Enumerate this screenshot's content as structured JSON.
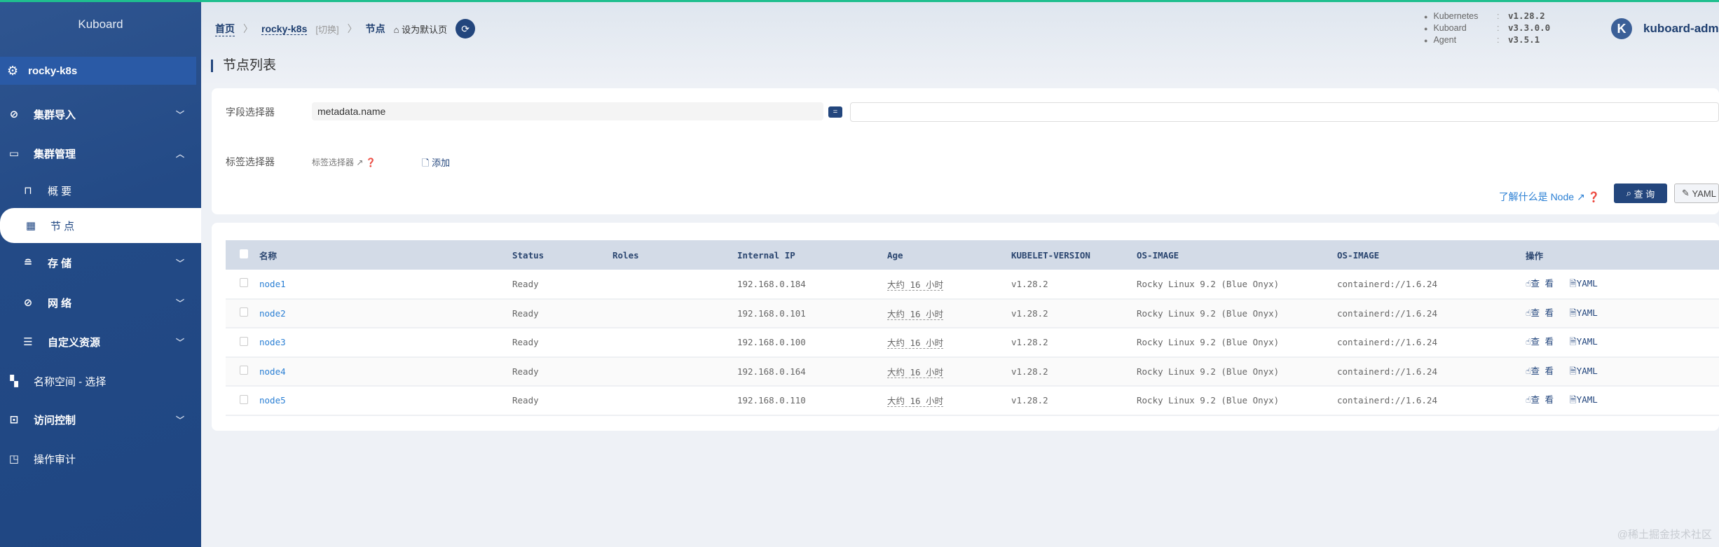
{
  "sidebar": {
    "logo": "Kuboard",
    "cluster": "rocky-k8s",
    "items": [
      {
        "label": "集群导入",
        "icon": "link-icon",
        "chevron": "﹀"
      },
      {
        "label": "集群管理",
        "icon": "folder-icon",
        "chevron": "︿"
      },
      {
        "label": "概 要",
        "icon": "monitor-icon"
      },
      {
        "label": "节 点",
        "icon": "grid-icon"
      },
      {
        "label": "存 储",
        "icon": "database-icon",
        "chevron": "﹀"
      },
      {
        "label": "网 络",
        "icon": "link-icon",
        "chevron": "﹀"
      },
      {
        "label": "自定义资源",
        "icon": "sliders-icon",
        "chevron": "﹀"
      },
      {
        "label": "名称空间 - 选择",
        "icon": "apps-icon"
      },
      {
        "label": "访问控制",
        "icon": "lock-icon",
        "chevron": "﹀"
      },
      {
        "label": "操作审计",
        "icon": "audit-icon"
      }
    ]
  },
  "breadcrumb": {
    "home": "首页",
    "cluster": "rocky-k8s",
    "switch": "[切换]",
    "current": "节点",
    "set_default": "设为默认页"
  },
  "versions": [
    {
      "name": "Kubernetes",
      "value": "v1.28.2"
    },
    {
      "name": "Kuboard",
      "value": "v3.3.0.0"
    },
    {
      "name": "Agent",
      "value": "v3.5.1"
    }
  ],
  "user": {
    "avatar": "K",
    "name": "kuboard-admin"
  },
  "page_title": "节点列表",
  "filter": {
    "field_label": "字段选择器",
    "field_value": "metadata.name",
    "operator": "=",
    "field_input": "",
    "label_label": "标签选择器",
    "label_link": "标签选择器",
    "add": "添加",
    "learn": "了解什么是 Node",
    "query": "查 询",
    "yaml": "YAML"
  },
  "table": {
    "headers": [
      "名称",
      "Status",
      "Roles",
      "Internal IP",
      "Age",
      "KUBELET-VERSION",
      "OS-IMAGE",
      "OS-IMAGE",
      "操作"
    ],
    "rows": [
      {
        "name": "node1",
        "status": "Ready",
        "roles": "",
        "ip": "192.168.0.184",
        "age": "大约 16 小时",
        "kubelet": "v1.28.2",
        "os": "Rocky Linux 9.2 (Blue Onyx)",
        "runtime": "containerd://1.6.24"
      },
      {
        "name": "node2",
        "status": "Ready",
        "roles": "",
        "ip": "192.168.0.101",
        "age": "大约 16 小时",
        "kubelet": "v1.28.2",
        "os": "Rocky Linux 9.2 (Blue Onyx)",
        "runtime": "containerd://1.6.24"
      },
      {
        "name": "node3",
        "status": "Ready",
        "roles": "",
        "ip": "192.168.0.100",
        "age": "大约 16 小时",
        "kubelet": "v1.28.2",
        "os": "Rocky Linux 9.2 (Blue Onyx)",
        "runtime": "containerd://1.6.24"
      },
      {
        "name": "node4",
        "status": "Ready",
        "roles": "",
        "ip": "192.168.0.164",
        "age": "大约 16 小时",
        "kubelet": "v1.28.2",
        "os": "Rocky Linux 9.2 (Blue Onyx)",
        "runtime": "containerd://1.6.24"
      },
      {
        "name": "node5",
        "status": "Ready",
        "roles": "",
        "ip": "192.168.0.110",
        "age": "大约 16 小时",
        "kubelet": "v1.28.2",
        "os": "Rocky Linux 9.2 (Blue Onyx)",
        "runtime": "containerd://1.6.24"
      }
    ],
    "actions": {
      "view": "查 看",
      "yaml": "YAML"
    }
  },
  "watermark": "@稀土掘金技术社区",
  "colors": {
    "accent": "#23467d",
    "sidebar": "#234a86",
    "link": "#2a7fd4",
    "topbar": "#1fbf8f"
  }
}
